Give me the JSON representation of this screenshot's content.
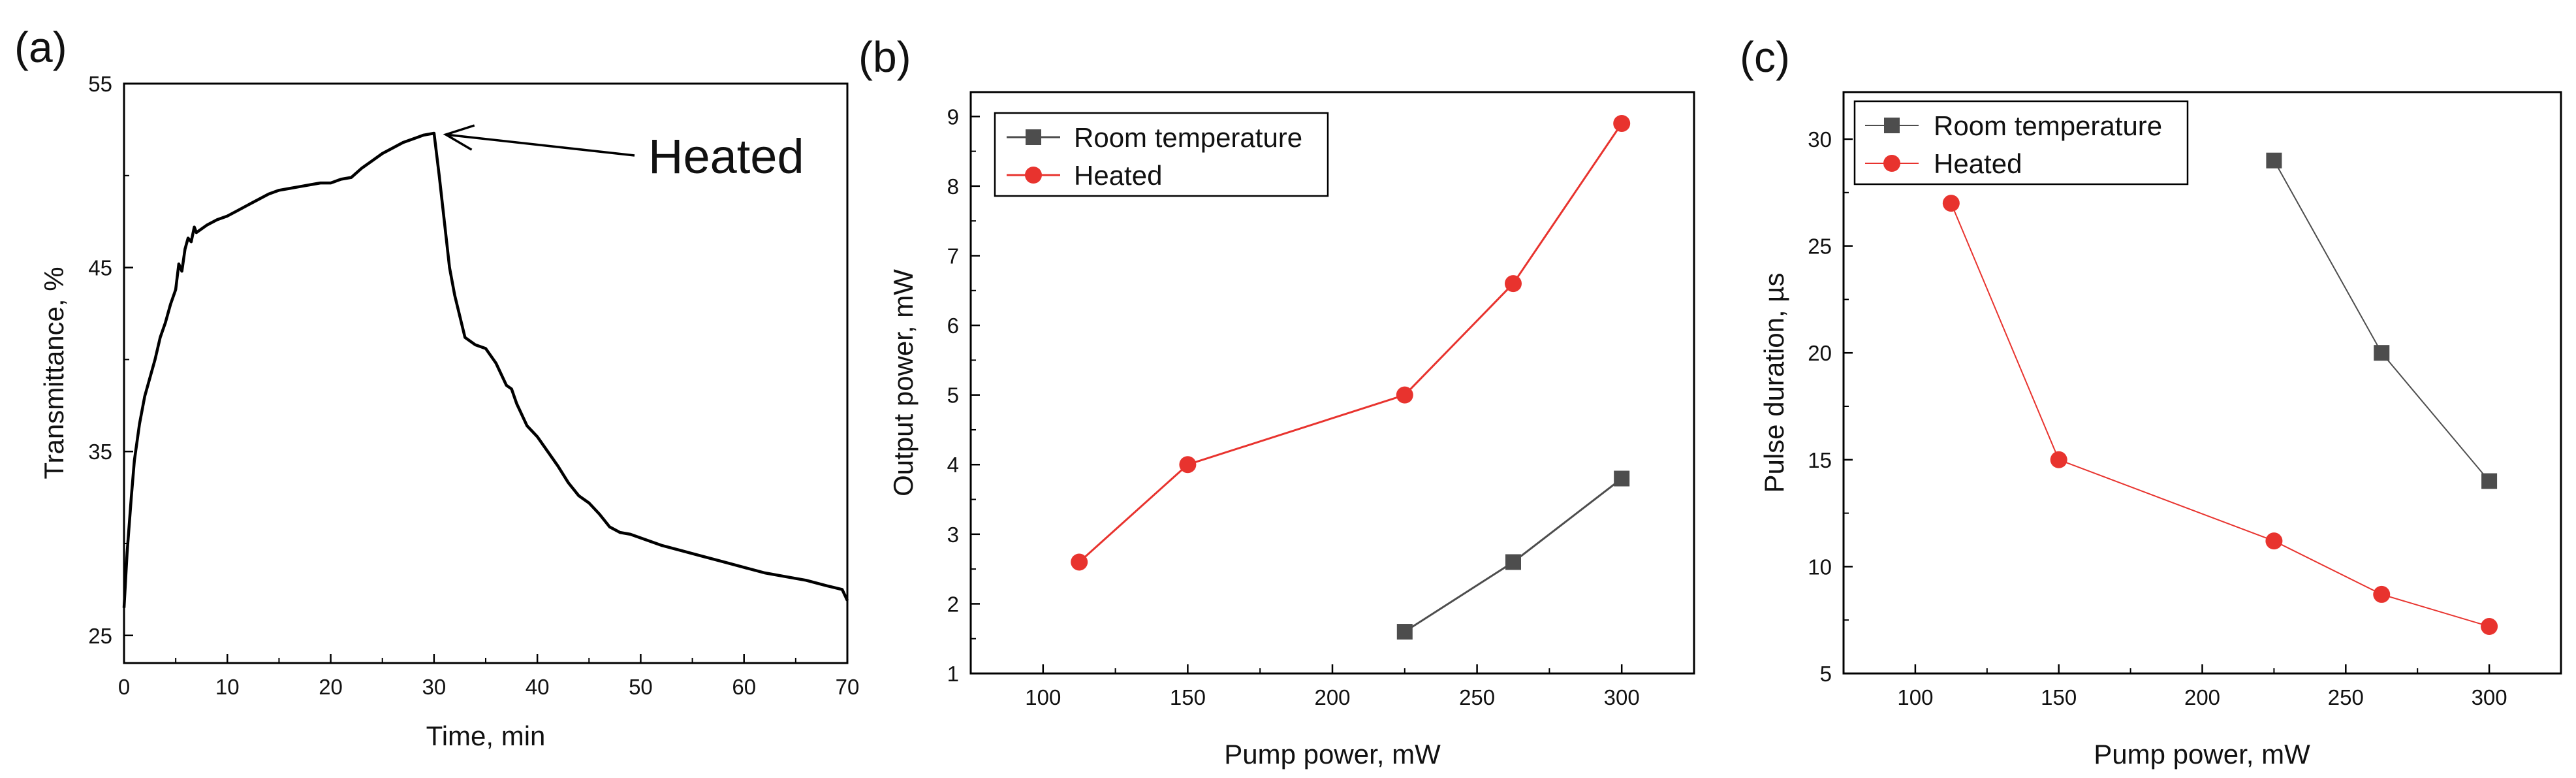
{
  "figure": {
    "colors": {
      "room": "#4d4d4d",
      "heated": "#e8332e",
      "axis": "#000000",
      "transmittance": "#000000"
    },
    "icons": {
      "square_marker": "square-marker-icon",
      "circle_marker": "circle-marker-icon"
    }
  },
  "chart_data": [
    {
      "panel": "(a)",
      "type": "line",
      "title": "",
      "xlabel": "Time, min",
      "ylabel": "Transmittance, %",
      "xlim": [
        0,
        70
      ],
      "ylim": [
        23.5,
        55
      ],
      "xticks": [
        0,
        10,
        20,
        30,
        40,
        50,
        60,
        70
      ],
      "yticks": [
        25,
        35,
        45,
        55
      ],
      "grid": false,
      "legend": "none",
      "series": [
        {
          "name": "Transmittance",
          "color": "#000000",
          "x": [
            0,
            0.3,
            0.7,
            1,
            1.5,
            2,
            2.5,
            3,
            3.5,
            4,
            4.5,
            5,
            5.3,
            5.6,
            5.9,
            6.2,
            6.5,
            6.8,
            7,
            8,
            9,
            10,
            11,
            12,
            13,
            14,
            15,
            16,
            17,
            18,
            19,
            20,
            21,
            22,
            23,
            24,
            25,
            26,
            27,
            28,
            29,
            30,
            30.5,
            31,
            31.5,
            32,
            33,
            34,
            35,
            36,
            37,
            37.5,
            38,
            39,
            40,
            41,
            42,
            43,
            44,
            45,
            46,
            47,
            48,
            49,
            50,
            52,
            54,
            56,
            58,
            60,
            62,
            64,
            66,
            68,
            69.5,
            70
          ],
          "y": [
            26.5,
            29.5,
            32.5,
            34.5,
            36.5,
            38.0,
            39.0,
            40.0,
            41.2,
            42.0,
            43.0,
            43.8,
            45.2,
            44.8,
            46.0,
            46.6,
            46.4,
            47.2,
            46.9,
            47.3,
            47.6,
            47.8,
            48.1,
            48.4,
            48.7,
            49.0,
            49.2,
            49.3,
            49.4,
            49.5,
            49.6,
            49.6,
            49.8,
            49.9,
            50.4,
            50.8,
            51.2,
            51.5,
            51.8,
            52.0,
            52.2,
            52.3,
            50.0,
            47.5,
            45.0,
            43.5,
            41.2,
            40.8,
            40.6,
            39.8,
            38.6,
            38.4,
            37.6,
            36.4,
            35.8,
            35.0,
            34.2,
            33.3,
            32.6,
            32.2,
            31.6,
            30.9,
            30.6,
            30.5,
            30.3,
            29.9,
            29.6,
            29.3,
            29.0,
            28.7,
            28.4,
            28.2,
            28.0,
            27.7,
            27.5,
            26.9
          ]
        }
      ],
      "annotations": [
        {
          "text": "Heated",
          "x": 30,
          "y": 52.3
        }
      ]
    },
    {
      "panel": "(b)",
      "type": "line",
      "title": "",
      "xlabel": "Pump power, mW",
      "ylabel": "Output power, mW",
      "xlim": [
        75,
        325
      ],
      "ylim": [
        1,
        9.35
      ],
      "xticks": [
        100,
        150,
        200,
        250,
        300
      ],
      "yticks": [
        1,
        2,
        3,
        4,
        5,
        6,
        7,
        8,
        9
      ],
      "grid": false,
      "legend": "top-left",
      "series": [
        {
          "name": "Room temperature",
          "marker": "square",
          "color": "#4d4d4d",
          "x": [
            225,
            262.5,
            300
          ],
          "y": [
            1.6,
            2.6,
            3.8
          ]
        },
        {
          "name": "Heated",
          "marker": "circle",
          "color": "#e8332e",
          "x": [
            112.5,
            150,
            225,
            262.5,
            300
          ],
          "y": [
            2.6,
            4.0,
            5.0,
            6.6,
            8.9
          ]
        }
      ]
    },
    {
      "panel": "(c)",
      "type": "line",
      "title": "",
      "xlabel": "Pump power, mW",
      "ylabel": "Pulse duration, µs",
      "xlim": [
        75,
        325
      ],
      "ylim": [
        5,
        32.2
      ],
      "xticks": [
        100,
        150,
        200,
        250,
        300
      ],
      "yticks": [
        5,
        10,
        15,
        20,
        25,
        30
      ],
      "grid": false,
      "legend": "top-left",
      "series": [
        {
          "name": "Room temperature",
          "marker": "square",
          "color": "#4d4d4d",
          "x": [
            225,
            262.5,
            300
          ],
          "y": [
            29,
            20,
            14
          ]
        },
        {
          "name": "Heated",
          "marker": "circle",
          "color": "#e8332e",
          "x": [
            112.5,
            150,
            225,
            262.5,
            300
          ],
          "y": [
            27,
            15,
            11.2,
            8.7,
            7.2
          ]
        }
      ]
    }
  ]
}
